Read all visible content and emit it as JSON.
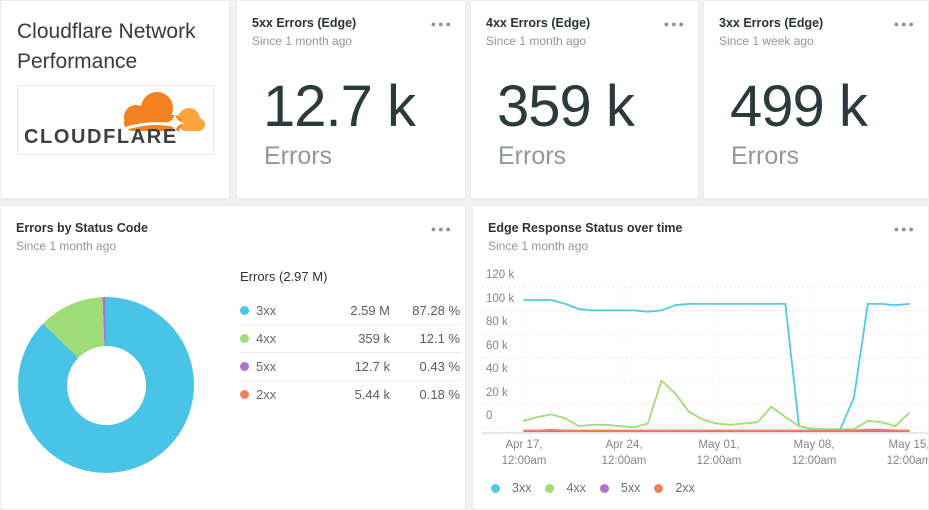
{
  "page": {
    "background": "#f0f1f1"
  },
  "branding_card": {
    "title": "Cloudflare Network Performance",
    "logo_text": "CLOUDFLARE",
    "logo_mark": "’",
    "logo_orange": "#f48120",
    "logo_amber": "#faa63d"
  },
  "metric_cards": [
    {
      "title": "5xx Errors (Edge)",
      "subtitle": "Since 1 month ago",
      "value": "12.7 k",
      "unit": "Errors",
      "menu_icon": "●●●"
    },
    {
      "title": "4xx Errors (Edge)",
      "subtitle": "Since 1 month ago",
      "value": "359 k",
      "unit": "Errors",
      "menu_icon": "●●●"
    },
    {
      "title": "3xx Errors (Edge)",
      "subtitle": "Since 1 week ago",
      "value": "499 k",
      "unit": "Errors",
      "menu_icon": "●●●"
    }
  ],
  "pie_card": {
    "title": "Errors by Status Code",
    "subtitle": "Since 1 month ago",
    "menu_icon": "●●●"
  },
  "line_card": {
    "title": "Edge Response Status over time",
    "subtitle": "Since 1 month ago",
    "menu_icon": "●●●"
  },
  "chart_data": [
    {
      "type": "pie",
      "donut": true,
      "title": "Errors by Status Code",
      "subtitle": "Since 1 month ago",
      "total_label": "Errors (2.97 M)",
      "slices": [
        {
          "label": "3xx",
          "value_label": "2.59 M",
          "value": 2590000,
          "pct": 87.28,
          "pct_label": "87.28 %",
          "color": "#4ac4e6"
        },
        {
          "label": "4xx",
          "value_label": "359 k",
          "value": 359000,
          "pct": 12.1,
          "pct_label": "12.1 %",
          "color": "#a0dc78"
        },
        {
          "label": "5xx",
          "value_label": "12.7 k",
          "value": 12700,
          "pct": 0.43,
          "pct_label": "0.43 %",
          "color": "#ad74d4"
        },
        {
          "label": "2xx",
          "value_label": "5.44 k",
          "value": 5440,
          "pct": 0.18,
          "pct_label": "0.18 %",
          "color": "#f27e62"
        }
      ]
    },
    {
      "type": "line",
      "title": "Edge Response Status over time",
      "subtitle": "Since 1 month ago",
      "ylim": [
        0,
        120000
      ],
      "y_unit": "thousands",
      "grid": "dotted",
      "legend_position": "bottom",
      "y_ticks": [
        "120 k",
        "100 k",
        "80 k",
        "60 k",
        "40 k",
        "20 k",
        "0"
      ],
      "x_tick_labels": [
        [
          "Apr 17,",
          "12:00am"
        ],
        [
          "Apr 24,",
          "12:00am"
        ],
        [
          "May 01,",
          "12:00am"
        ],
        [
          "May 08,",
          "12:00am"
        ],
        [
          "May 15,",
          "12:00am"
        ]
      ],
      "x_interval": "1 day",
      "series": [
        {
          "name": "3xx",
          "color": "#54c8ea",
          "values_k": [
            100,
            100,
            100,
            97,
            93,
            92,
            92,
            92,
            92,
            91,
            92,
            96,
            97,
            97,
            97,
            97,
            97,
            97,
            97,
            97,
            3,
            0.5,
            0.5,
            0.5,
            25,
            97,
            97,
            96,
            97
          ]
        },
        {
          "name": "4xx",
          "color": "#a0dc78",
          "values_k": [
            7,
            10,
            12,
            9,
            3,
            4,
            4,
            3,
            2,
            5,
            38,
            28,
            14,
            8,
            5,
            4,
            5,
            6,
            18,
            10,
            3,
            1,
            0.5,
            0.5,
            0.5,
            7,
            6,
            3,
            13
          ]
        },
        {
          "name": "5xx",
          "color": "#ad74d4",
          "values_k": [
            0.2,
            0.2,
            0.2,
            0.2,
            0.2,
            0.2,
            0.2,
            0.2,
            0.2,
            0.2,
            0.2,
            0.2,
            0.2,
            0.2,
            0.2,
            0.2,
            0.2,
            0.2,
            0.2,
            0.2,
            0.2,
            0.2,
            0.2,
            0.2,
            0.2,
            0.2,
            0.2,
            0.2,
            0.2
          ]
        },
        {
          "name": "2xx",
          "color": "#f27e62",
          "values_k": [
            0.8,
            0.8,
            1.2,
            0.8,
            0.8,
            0.8,
            0.8,
            0.8,
            0.8,
            0.8,
            0.8,
            0.8,
            0.8,
            0.8,
            0.8,
            0.8,
            0.8,
            0.8,
            0.8,
            0.8,
            0.8,
            0.8,
            0.8,
            0.8,
            0.8,
            1.5,
            1.5,
            0.8,
            0.8
          ]
        }
      ]
    }
  ]
}
